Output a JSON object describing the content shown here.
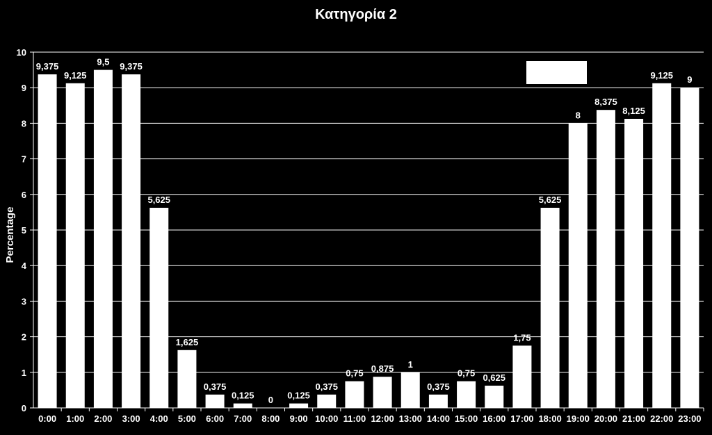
{
  "chart_data": {
    "type": "bar",
    "title": "Κατηγορία 2",
    "xlabel": "",
    "ylabel": "Percentage",
    "ylim": [
      0,
      10
    ],
    "yticks": [
      0,
      1,
      2,
      3,
      4,
      5,
      6,
      7,
      8,
      9,
      10
    ],
    "grid": true,
    "legend": "top-right",
    "bar_color": "#ffffff",
    "background_color": "#000000",
    "categories": [
      "0:00",
      "1:00",
      "2:00",
      "3:00",
      "4:00",
      "5:00",
      "6:00",
      "7:00",
      "8:00",
      "9:00",
      "10:00",
      "11:00",
      "12:00",
      "13:00",
      "14:00",
      "15:00",
      "16:00",
      "17:00",
      "18:00",
      "19:00",
      "20:00",
      "21:00",
      "22:00",
      "23:00"
    ],
    "values": [
      9.375,
      9.125,
      9.5,
      9.375,
      5.625,
      1.625,
      0.375,
      0.125,
      0,
      0.125,
      0.375,
      0.75,
      0.875,
      1,
      0.375,
      0.75,
      0.625,
      1.75,
      5.625,
      8,
      8.375,
      8.125,
      9.125,
      9
    ],
    "value_labels": [
      "9,375",
      "9,125",
      "9,5",
      "9,375",
      "5,625",
      "1,625",
      "0,375",
      "0,125",
      "0",
      "0,125",
      "0,375",
      "0,75",
      "0,875",
      "1",
      "0,375",
      "0,75",
      "0,625",
      "1,75",
      "5,625",
      "8",
      "8,375",
      "8,125",
      "9,125",
      "9"
    ]
  }
}
